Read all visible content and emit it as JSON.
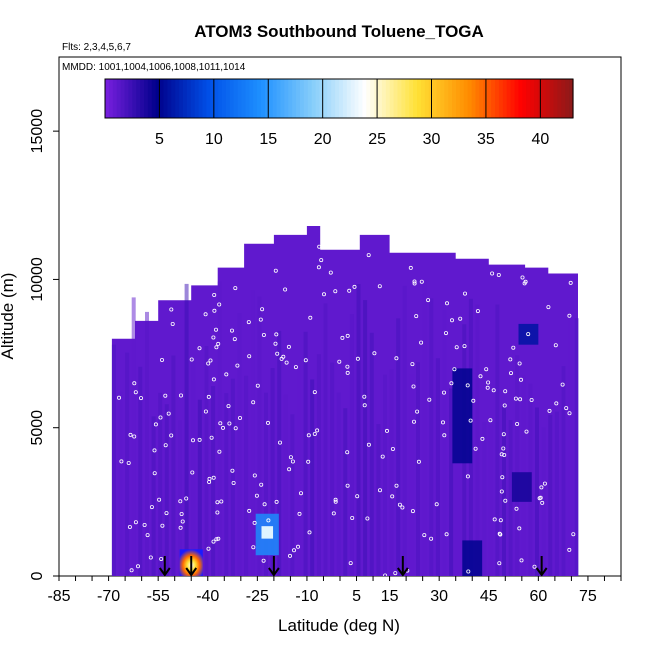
{
  "chart_data": {
    "type": "heatmap",
    "title": "ATOM3 Southbound Toluene_TOGA",
    "flights_note": "Flts: 2,3,4,5,6,7",
    "dates_note": "MMDD: 1001,1004,1006,1008,1011,1014",
    "xlabel": "Latitude (deg N)",
    "ylabel": "Altitude (m)",
    "xlim": [
      -85,
      85
    ],
    "ylim": [
      0,
      17500
    ],
    "x_ticks": [
      -85,
      -70,
      -55,
      -40,
      -25,
      -10,
      5,
      15,
      30,
      45,
      60,
      75
    ],
    "x_tick_labels": [
      "-85",
      "-70",
      "-55",
      "-40",
      "-25",
      "-10",
      "5",
      "15",
      "30",
      "45",
      "60",
      "75"
    ],
    "y_ticks": [
      0,
      5000,
      10000,
      15000
    ],
    "y_tick_labels": [
      "0",
      "5000",
      "10000",
      "15000"
    ],
    "colorbar": {
      "range": [
        0,
        43
      ],
      "ticks": [
        5,
        10,
        15,
        20,
        25,
        30,
        35,
        40
      ],
      "tick_labels": [
        "5",
        "10",
        "15",
        "20",
        "25",
        "30",
        "35",
        "40"
      ],
      "colors": [
        "#7a1fe0",
        "#00008b",
        "#0050e8",
        "#1e90ff",
        "#87cefa",
        "#ffffff",
        "#ffe135",
        "#ff8c00",
        "#ff0000",
        "#8b1a1a"
      ]
    },
    "coverage_envelope": [
      [
        -69,
        0
      ],
      [
        -69,
        8000
      ],
      [
        -62,
        8000
      ],
      [
        -62,
        8600
      ],
      [
        -55,
        8600
      ],
      [
        -55,
        9300
      ],
      [
        -45,
        9300
      ],
      [
        -45,
        9800
      ],
      [
        -37,
        9800
      ],
      [
        -37,
        10400
      ],
      [
        -29,
        10400
      ],
      [
        -29,
        11200
      ],
      [
        -20,
        11200
      ],
      [
        -20,
        11500
      ],
      [
        -10,
        11500
      ],
      [
        -10,
        11800
      ],
      [
        -6,
        11800
      ],
      [
        -6,
        11000
      ],
      [
        6,
        11000
      ],
      [
        6,
        11500
      ],
      [
        15,
        11500
      ],
      [
        15,
        10900
      ],
      [
        35,
        10900
      ],
      [
        35,
        10700
      ],
      [
        45,
        10700
      ],
      [
        45,
        10500
      ],
      [
        56,
        10500
      ],
      [
        56,
        10400
      ],
      [
        63,
        10400
      ],
      [
        63,
        10200
      ],
      [
        72,
        10200
      ],
      [
        72,
        0
      ]
    ],
    "background_value": 1,
    "features": [
      {
        "lat": -45,
        "alt_lo": 0,
        "alt_hi": 900,
        "value": 38,
        "note": "hot spot near surface"
      },
      {
        "lat": -22,
        "alt_lo": 700,
        "alt_hi": 2100,
        "value": 14,
        "note": "light blue column"
      },
      {
        "lat": 57,
        "alt_lo": 7800,
        "alt_hi": 8500,
        "value": 6,
        "note": "dark blue patch"
      },
      {
        "lat": 37,
        "alt_lo": 3800,
        "alt_hi": 7000,
        "value": 5,
        "note": "dark blue band"
      },
      {
        "lat": 40,
        "alt_lo": 0,
        "alt_hi": 1200,
        "value": 5,
        "note": "dark blue near surface"
      },
      {
        "lat": 55,
        "alt_lo": 2500,
        "alt_hi": 3500,
        "value": 4,
        "note": "dark blue patch"
      }
    ],
    "surface_markers_lat": [
      -53,
      -45,
      -20,
      19,
      61
    ],
    "sample_points_note": "small white circles mark sample locations"
  }
}
